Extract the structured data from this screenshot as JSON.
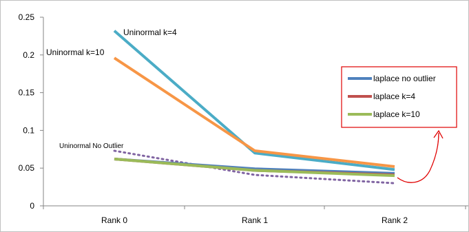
{
  "chart_data": {
    "type": "line",
    "categories": [
      "Rank 0",
      "Rank 1",
      "Rank 2"
    ],
    "ylim": [
      0,
      0.25
    ],
    "yticks": [
      0,
      0.05,
      0.1,
      0.15,
      0.2,
      0.25
    ],
    "ytick_labels": [
      "0",
      "0.05",
      "0.1",
      "0.15",
      "0.2",
      "0.25"
    ],
    "grid": false,
    "legend_position": "right",
    "series": [
      {
        "key": "uni4",
        "name": "Uninormal k=4",
        "color": "#4BACC6",
        "style": "solid",
        "values": [
          0.232,
          0.07,
          0.048
        ]
      },
      {
        "key": "uni10",
        "name": "Uninormal k=10",
        "color": "#F79646",
        "style": "solid",
        "values": [
          0.196,
          0.073,
          0.052
        ]
      },
      {
        "key": "uninone",
        "name": "Uninormal No Outlier",
        "color": "#8064A2",
        "style": "dotted",
        "values": [
          0.073,
          0.041,
          0.03
        ]
      },
      {
        "key": "lapnone",
        "name": "laplace no outlier",
        "color": "#4F81BD",
        "style": "solid",
        "values": [
          0.062,
          0.049,
          0.043
        ]
      },
      {
        "key": "lap4",
        "name": "laplace k=4",
        "color": "#C0504D",
        "style": "solid",
        "values": [
          0.062,
          0.047,
          0.041
        ]
      },
      {
        "key": "lap10",
        "name": "laplace k=10",
        "color": "#9BBB59",
        "style": "solid",
        "values": [
          0.062,
          0.047,
          0.04
        ]
      }
    ],
    "annotations": [
      {
        "text": "Uninormal k=4",
        "series": "uni4"
      },
      {
        "text": "Uninormal k=10",
        "series": "uni10"
      },
      {
        "text": "Uninormal No Outlier",
        "series": "uninone"
      }
    ],
    "legend": [
      {
        "label": "laplace no outlier",
        "color": "#4F81BD"
      },
      {
        "label": "laplace k=4",
        "color": "#C0504D"
      },
      {
        "label": "laplace k=10",
        "color": "#9BBB59"
      }
    ],
    "legend_border_color": "#E00000",
    "arrow_color": "#E00000"
  }
}
